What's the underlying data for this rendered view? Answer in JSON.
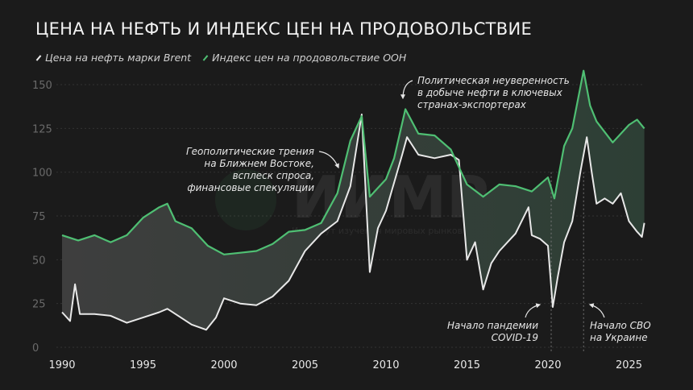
{
  "chart_data": {
    "type": "line",
    "title": "ЦЕНА НА НЕФТЬ И ИНДЕКС ЦЕН НА ПРОДОВОЛЬСТВИЕ",
    "xlim": [
      1990,
      2026
    ],
    "ylim": [
      0,
      155
    ],
    "x_ticks": [
      "1990",
      "1995",
      "2000",
      "2005",
      "2010",
      "2015",
      "2020",
      "2025"
    ],
    "y_ticks": [
      "0",
      "25",
      "50",
      "75",
      "100",
      "125",
      "150"
    ],
    "grid": "horizontal dashed",
    "legend_placement": "top-left",
    "fill_between": true,
    "series": [
      {
        "name": "Цена на нефть марки Brent",
        "color": "#e8e8e8",
        "x": [
          1990,
          1990.5,
          1990.8,
          1991.1,
          1992,
          1993,
          1994,
          1995,
          1996,
          1996.5,
          1997,
          1998,
          1998.9,
          1999.5,
          2000,
          2001,
          2002,
          2003,
          2004,
          2005,
          2006,
          2007,
          2007.8,
          2008.5,
          2009,
          2009.5,
          2010,
          2011,
          2011.3,
          2012,
          2013,
          2014,
          2014.5,
          2015,
          2015.5,
          2016,
          2016.5,
          2017,
          2018,
          2018.8,
          2019,
          2019.5,
          2020,
          2020.3,
          2020.6,
          2021,
          2021.5,
          2022,
          2022.4,
          2022.7,
          2023,
          2023.5,
          2024,
          2024.5,
          2025,
          2025.5,
          2025.8,
          2025.95
        ],
        "values": [
          20,
          15,
          36,
          19,
          19,
          18,
          14,
          17,
          20,
          22,
          19,
          13,
          10,
          17,
          28,
          25,
          24,
          29,
          38,
          55,
          65,
          72,
          92,
          133,
          43,
          68,
          78,
          110,
          120,
          110,
          108,
          110,
          107,
          50,
          60,
          33,
          48,
          55,
          65,
          80,
          64,
          62,
          58,
          23,
          40,
          60,
          72,
          100,
          120,
          100,
          82,
          85,
          82,
          88,
          72,
          66,
          63,
          71
        ]
      },
      {
        "name": "Индекс цен на продовольствие ООН",
        "color": "#4fbf73",
        "x": [
          1990,
          1991,
          1992,
          1993,
          1994,
          1995,
          1996,
          1996.5,
          1997,
          1998,
          1999,
          2000,
          2001,
          2002,
          2003,
          2004,
          2005,
          2006,
          2007,
          2007.8,
          2008.5,
          2009,
          2010,
          2010.5,
          2011.2,
          2012,
          2013,
          2014,
          2015,
          2016,
          2017,
          2018,
          2019,
          2020,
          2020.4,
          2021,
          2021.5,
          2022.2,
          2022.6,
          2023,
          2024,
          2025,
          2025.5,
          2025.95
        ],
        "values": [
          64,
          61,
          64,
          60,
          64,
          74,
          80,
          82,
          72,
          68,
          58,
          53,
          54,
          55,
          59,
          66,
          67,
          71,
          88,
          118,
          132,
          86,
          96,
          108,
          136,
          122,
          121,
          113,
          93,
          86,
          93,
          92,
          89,
          97,
          85,
          115,
          125,
          158,
          138,
          129,
          117,
          127,
          130,
          125
        ]
      }
    ],
    "annotations": [
      {
        "lines": [
          "Геополитические трения",
          "на Ближнем Востоке,",
          "всплеск спроса,",
          "финансовые спекуляции"
        ]
      },
      {
        "lines": [
          "Политическая неуверенность",
          "в добыче нефти в ключевых",
          "странах-экспортерах"
        ]
      },
      {
        "lines": [
          "Начало пандемии",
          "COVID-19"
        ],
        "x": 2020.2
      },
      {
        "lines": [
          "Начало СВО",
          "на Украине"
        ],
        "x": 2022.2
      }
    ],
    "watermark": {
      "logo": "ИИМР",
      "text": "Институт изучения мировых рынков"
    }
  }
}
